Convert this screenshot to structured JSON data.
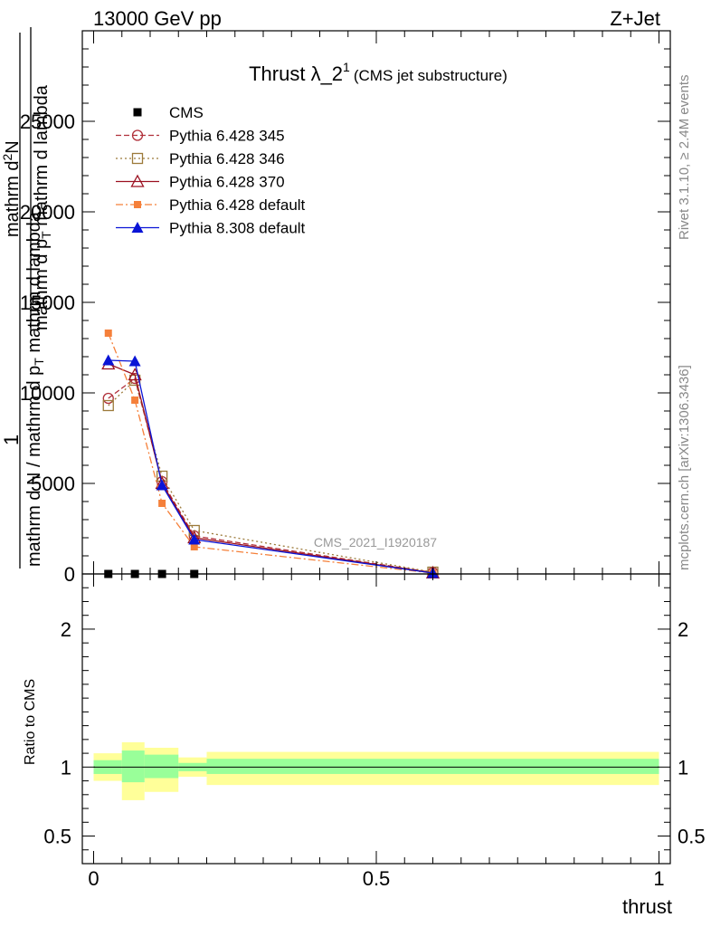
{
  "header": {
    "left": "13000 GeV pp",
    "right": "Z+Jet"
  },
  "side_labels": {
    "rivet": "Rivet 3.1.10, ≥ 2.4M events",
    "mcplots": "mcplots.cern.ch [arXiv:1306.3436]"
  },
  "plot_title": {
    "main": "Thrust λ_2",
    "sup": "1",
    "sub": "(CMS jet substructure)"
  },
  "watermark": "CMS_2021_I1920187",
  "y_axis_label": {
    "numerator_one": "1",
    "numerator_frac": "mathrm d N / mathrm d p",
    "numerator_frac_sub": "T",
    "numerator_frac_tail": " mathrm d lambda",
    "top_line1": "mathrm d",
    "top_sup": "2",
    "top_line1b": "N",
    "top_line2": "mathrm d p",
    "top_line2_sub": "T",
    "top_line2b": " mathrm d lambda"
  },
  "ratio_ylabel": "Ratio to CMS",
  "x_axis_label": "thrust",
  "colors": {
    "cms": "#000000",
    "p345": "#b0303a",
    "p346": "#9c7a3a",
    "p370": "#9b1020",
    "p6def": "#f5803a",
    "p8def": "#0a14d6",
    "band_inner": "#99ff99",
    "band_outer": "#ffff99"
  },
  "chart_data": [
    {
      "type": "line",
      "panel": "main",
      "xlim": [
        -0.02,
        1.02
      ],
      "ylim": [
        0,
        30000
      ],
      "y_ticks": [
        0,
        5000,
        10000,
        15000,
        20000,
        25000
      ],
      "y_tick_labels": [
        "0",
        "5000",
        "10000",
        "15000",
        "20000",
        "25000"
      ],
      "legend_position": "top-left",
      "series": [
        {
          "name": "CMS",
          "key": "cms",
          "marker": "filled-square",
          "line": "none",
          "x": [
            0.026,
            0.073,
            0.121,
            0.178
          ],
          "y": [
            0,
            0,
            0,
            0
          ]
        },
        {
          "name": "Pythia 6.428 345",
          "key": "p345",
          "marker": "open-circle",
          "line": "dashed",
          "x": [
            0.026,
            0.073,
            0.121,
            0.178,
            0.6
          ],
          "y": [
            9700,
            10800,
            5100,
            2100,
            80
          ]
        },
        {
          "name": "Pythia 6.428 346",
          "key": "p346",
          "marker": "open-square",
          "line": "dotted",
          "x": [
            0.026,
            0.073,
            0.121,
            0.178,
            0.6
          ],
          "y": [
            9300,
            10700,
            5400,
            2400,
            100
          ]
        },
        {
          "name": "Pythia 6.428 370",
          "key": "p370",
          "marker": "open-triangle",
          "line": "solid",
          "x": [
            0.026,
            0.073,
            0.121,
            0.178,
            0.6
          ],
          "y": [
            11600,
            11000,
            5000,
            2000,
            60
          ]
        },
        {
          "name": "Pythia 6.428 default",
          "key": "p6def",
          "marker": "filled-square-small",
          "line": "dashdot",
          "x": [
            0.026,
            0.073,
            0.121,
            0.178,
            0.6
          ],
          "y": [
            13300,
            9600,
            3900,
            1500,
            50
          ]
        },
        {
          "name": "Pythia 8.308 default",
          "key": "p8def",
          "marker": "filled-triangle",
          "line": "solid",
          "x": [
            0.026,
            0.073,
            0.121,
            0.178,
            0.6
          ],
          "y": [
            11800,
            11750,
            4900,
            1900,
            50
          ]
        }
      ]
    },
    {
      "type": "area",
      "panel": "ratio",
      "xlim": [
        -0.02,
        1.02
      ],
      "ylim": [
        0.3,
        2.4
      ],
      "y_ticks": [
        0.5,
        1,
        2
      ],
      "y_tick_labels": [
        "0.5",
        "1",
        "2"
      ],
      "x_ticks": [
        0,
        0.5,
        1
      ],
      "x_tick_labels": [
        "0",
        "0.5",
        "1"
      ],
      "reference": 1,
      "bins": [
        {
          "lo": 0.0,
          "hi": 0.05,
          "inner": [
            0.95,
            1.05
          ],
          "outer": [
            0.9,
            1.1
          ]
        },
        {
          "lo": 0.05,
          "hi": 0.09,
          "inner": [
            0.89,
            1.12
          ],
          "outer": [
            0.76,
            1.18
          ]
        },
        {
          "lo": 0.09,
          "hi": 0.15,
          "inner": [
            0.92,
            1.09
          ],
          "outer": [
            0.82,
            1.14
          ]
        },
        {
          "lo": 0.15,
          "hi": 0.2,
          "inner": [
            0.97,
            1.03
          ],
          "outer": [
            0.93,
            1.07
          ]
        },
        {
          "lo": 0.2,
          "hi": 1.0,
          "inner": [
            0.95,
            1.06
          ],
          "outer": [
            0.87,
            1.11
          ]
        }
      ]
    }
  ]
}
